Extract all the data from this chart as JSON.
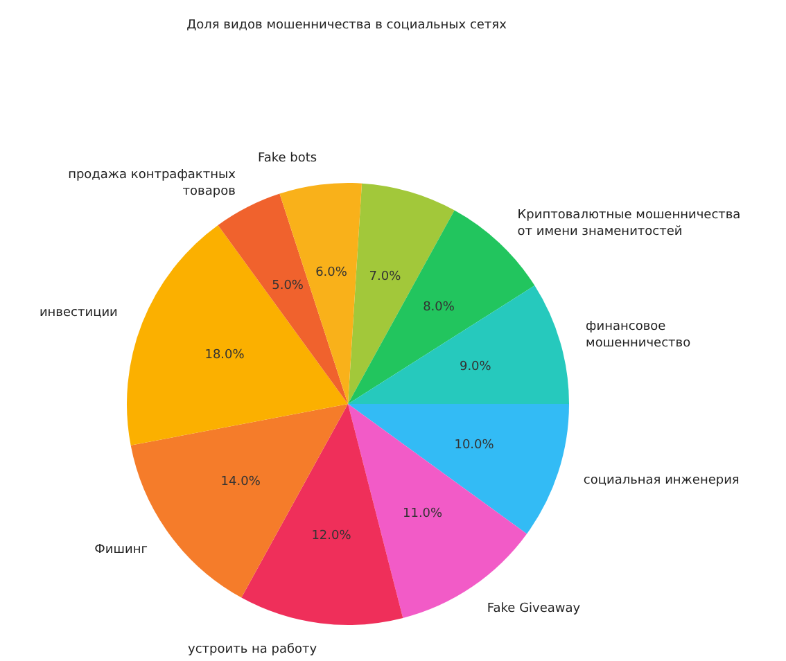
{
  "chart_data": {
    "type": "pie",
    "title": "Доля видов мошенничества в социальных сетях",
    "categories": [
      null,
      "Криптовалютные мошенничества\nот имени знаменитостей",
      "финансовое\nмошенничество",
      "социальная инженерия",
      "Fake Giveaway",
      "устроить на работу",
      "Фишинг",
      "инвестиции",
      "продажа контрафактных\nтоваров",
      "Fake bots"
    ],
    "values": [
      7,
      8,
      9,
      10,
      11,
      12,
      14,
      18,
      5,
      6
    ],
    "value_labels": [
      "7.0%",
      "8.0%",
      "9.0%",
      "10.0%",
      "11.0%",
      "12.0%",
      "14.0%",
      "18.0%",
      "5.0%",
      "6.0%"
    ],
    "colors": [
      "#a2c83a",
      "#22c55e",
      "#26c9bd",
      "#33bbf5",
      "#f25bc7",
      "#ef2f5a",
      "#f57c2a",
      "#fbb000",
      "#f0622d",
      "#f9b11a"
    ],
    "legend": false
  }
}
